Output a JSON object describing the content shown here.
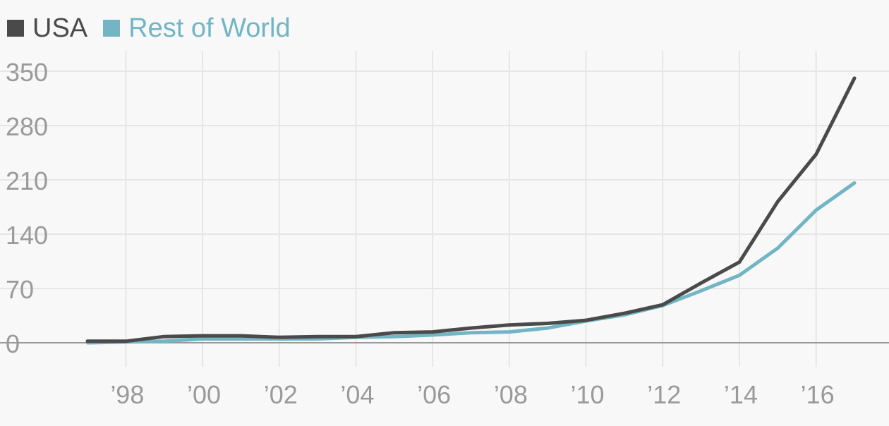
{
  "colors": {
    "usa": "#4a4a4a",
    "rest_of_world": "#72b5c4",
    "grid": "#e6e6e6",
    "zero_line": "#9a9a9a",
    "tick_text": "#9a9a9a"
  },
  "chart_data": {
    "type": "line",
    "title": "",
    "xlabel": "",
    "ylabel": "",
    "x": [
      1997,
      1998,
      1999,
      2000,
      2001,
      2002,
      2003,
      2004,
      2005,
      2006,
      2007,
      2008,
      2009,
      2010,
      2011,
      2012,
      2013,
      2014,
      2015,
      2016,
      2017
    ],
    "series": [
      {
        "name": "USA",
        "values": [
          2,
          2,
          8,
          9,
          9,
          7,
          8,
          8,
          13,
          14,
          19,
          23,
          25,
          29,
          38,
          49,
          77,
          104,
          182,
          243,
          341
        ]
      },
      {
        "name": "Rest of World",
        "values": [
          0,
          1,
          2,
          5,
          5,
          5,
          5,
          7,
          8,
          10,
          13,
          14,
          19,
          28,
          36,
          48,
          67,
          87,
          122,
          171,
          206
        ]
      }
    ],
    "x_ticks": [
      "’98",
      "’00",
      "’02",
      "’04",
      "’06",
      "’08",
      "’10",
      "’12",
      "’14",
      "’16"
    ],
    "x_tick_years": [
      1998,
      2000,
      2002,
      2004,
      2006,
      2008,
      2010,
      2012,
      2014,
      2016
    ],
    "y_ticks": [
      "0",
      "70",
      "140",
      "210",
      "280",
      "350"
    ],
    "y_tick_values": [
      0,
      70,
      140,
      210,
      280,
      350
    ],
    "xlim": [
      1997,
      2017
    ],
    "ylim": [
      0,
      350
    ],
    "grid": true,
    "legend": "top-left"
  }
}
